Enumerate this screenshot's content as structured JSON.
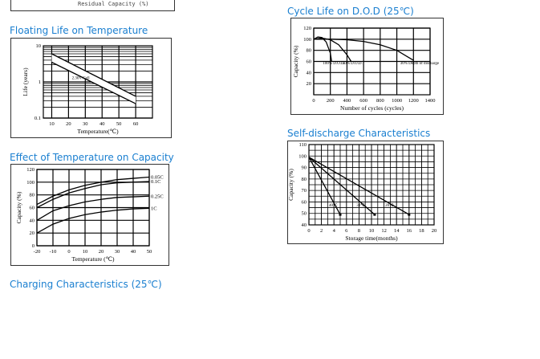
{
  "top_box": {
    "caption": "Residual Capacity (%)"
  },
  "sections": {
    "floating": "Floating Life on Temperature",
    "cycle": "Cycle Life on D.O.D (25℃)",
    "effect": "Effect of Temperature on Capacity",
    "self": "Self-discharge Characteristics",
    "charging": "Charging Characteristics (25℃)"
  },
  "chart_data": [
    {
      "id": "floating",
      "type": "line",
      "xlabel": "Temperature(℃)",
      "ylabel": "Life (years)",
      "xlim": [
        5,
        70
      ],
      "ylim": [
        0.1,
        10
      ],
      "yscale": "log",
      "xticks": [
        10,
        20,
        30,
        40,
        50,
        60
      ],
      "yticks": [
        0.1,
        1,
        10
      ],
      "grid": true,
      "series": [
        {
          "x": [
            10,
            60
          ],
          "y": [
            6,
            0.4
          ]
        },
        {
          "x": [
            10,
            60
          ],
          "y": [
            3.5,
            0.25
          ]
        }
      ],
      "annotations": [
        {
          "text": "2.30V/Cell",
          "x": 22,
          "y": 1.2
        }
      ]
    },
    {
      "id": "cycle",
      "type": "line",
      "xlabel": "Number of cycles (cycles)",
      "ylabel": "Capacity (%)",
      "xlim": [
        0,
        1400
      ],
      "ylim": [
        0,
        120
      ],
      "xticks": [
        0,
        200,
        400,
        600,
        800,
        1000,
        1200,
        1400
      ],
      "yticks": [
        20,
        40,
        60,
        80,
        100,
        120
      ],
      "grid": true,
      "series": [
        {
          "x": [
            0,
            50,
            100,
            150,
            200,
            215
          ],
          "y": [
            100,
            104,
            103,
            95,
            75,
            60
          ]
        },
        {
          "x": [
            0,
            100,
            200,
            300,
            400,
            450
          ],
          "y": [
            100,
            102,
            99,
            90,
            72,
            60
          ]
        },
        {
          "x": [
            0,
            200,
            400,
            600,
            800,
            1000,
            1200
          ],
          "y": [
            100,
            100,
            99,
            96,
            90,
            80,
            62
          ]
        }
      ],
      "annotations": [
        {
          "text": "100% D.O.D.",
          "x": 110,
          "y": 55
        },
        {
          "text": "50% D.O.D.",
          "x": 345,
          "y": 55
        },
        {
          "text": "30% Depth of discharge",
          "x": 1040,
          "y": 55
        }
      ]
    },
    {
      "id": "effect",
      "type": "line",
      "xlabel": "Temperature (℃)",
      "ylabel": "Capacity (%)",
      "xlim": [
        -20,
        50
      ],
      "ylim": [
        0,
        120
      ],
      "xticks": [
        -20,
        -10,
        0,
        10,
        20,
        30,
        40,
        50
      ],
      "yticks": [
        0,
        20,
        40,
        60,
        80,
        100,
        120
      ],
      "grid": true,
      "x": [
        -20,
        -10,
        0,
        10,
        20,
        30,
        40,
        50
      ],
      "series": [
        {
          "name": "0.05C",
          "values": [
            65,
            78,
            88,
            95,
            100,
            104,
            106,
            108
          ]
        },
        {
          "name": "0.1C",
          "values": [
            60,
            73,
            83,
            90,
            96,
            99,
            100,
            101
          ]
        },
        {
          "name": "0.25C",
          "values": [
            40,
            55,
            63,
            69,
            73,
            76,
            77,
            78
          ]
        },
        {
          "name": "1C",
          "values": [
            20,
            34,
            43,
            49,
            53,
            56,
            58,
            59
          ]
        }
      ]
    },
    {
      "id": "self",
      "type": "line",
      "xlabel": "Storage time(months)",
      "ylabel": "Capacity (%)",
      "xlim": [
        0,
        20
      ],
      "ylim": [
        40,
        110
      ],
      "xticks": [
        0,
        2,
        4,
        6,
        8,
        10,
        12,
        14,
        16,
        18,
        20
      ],
      "yticks": [
        40,
        50,
        60,
        70,
        80,
        90,
        100,
        110
      ],
      "grid": true,
      "series": [
        {
          "name": "40℃",
          "x": [
            0,
            5
          ],
          "y": [
            99,
            49
          ]
        },
        {
          "name": "30℃",
          "x": [
            0,
            10.5
          ],
          "y": [
            99,
            49
          ]
        },
        {
          "name": "20℃",
          "x": [
            0,
            16
          ],
          "y": [
            99,
            49
          ]
        }
      ],
      "annotations": [
        {
          "text": "40℃",
          "x": 3.2,
          "y": 56
        },
        {
          "text": "30℃",
          "x": 7.6,
          "y": 56
        },
        {
          "text": "20℃",
          "x": 12.2,
          "y": 56
        }
      ]
    }
  ]
}
